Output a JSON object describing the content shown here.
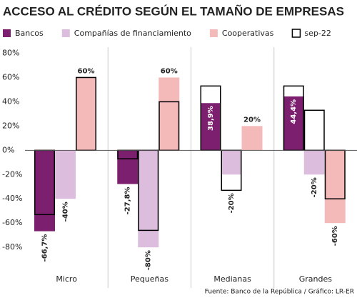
{
  "chart_data": {
    "type": "bar",
    "title": "ACCESO AL CRÉDITO SEGÚN EL TAMAÑO DE EMPRESAS",
    "source": "Fuente: Banco de la República / Gráfico: LR-ER",
    "categories": [
      "Micro",
      "Pequeñas",
      "Medianas",
      "Grandes"
    ],
    "series": [
      {
        "name": "Bancos",
        "color": "#7b1f6e",
        "values": [
          -66.7,
          -27.8,
          38.9,
          44.4
        ],
        "value_labels": [
          "-66,7%",
          "-27,8%",
          "38,9%",
          "44,4%"
        ]
      },
      {
        "name": "Compañías de financiamiento",
        "color": "#dcbddd",
        "values": [
          -40,
          -80,
          -20,
          -20
        ],
        "value_labels": [
          "-40%",
          "-80%",
          "-20%",
          "-20%"
        ]
      },
      {
        "name": "Cooperativas",
        "color": "#f4b9b9",
        "values": [
          60,
          60,
          20,
          -60
        ],
        "value_labels": [
          "60%",
          "60%",
          "20%",
          "-60%"
        ]
      },
      {
        "name": "sep-22",
        "color": "#000000",
        "outline": true,
        "values": [
          [
            -53,
            null,
            60
          ],
          [
            -7,
            -66,
            40
          ],
          [
            53,
            -33,
            null
          ],
          [
            53,
            33,
            -40
          ]
        ]
      }
    ],
    "ylim": [
      -97,
      85
    ],
    "yticks": [
      {
        "value": -80,
        "label": "-80%"
      },
      {
        "value": -60,
        "label": "-60%"
      },
      {
        "value": -40,
        "label": "-40%"
      },
      {
        "value": -20,
        "label": "-20%"
      },
      {
        "value": 0,
        "label": "0%"
      },
      {
        "value": 20,
        "label": "20%"
      },
      {
        "value": 40,
        "label": "40%"
      },
      {
        "value": 60,
        "label": "60%"
      },
      {
        "value": 80,
        "label": "80%"
      }
    ],
    "grid": false
  }
}
